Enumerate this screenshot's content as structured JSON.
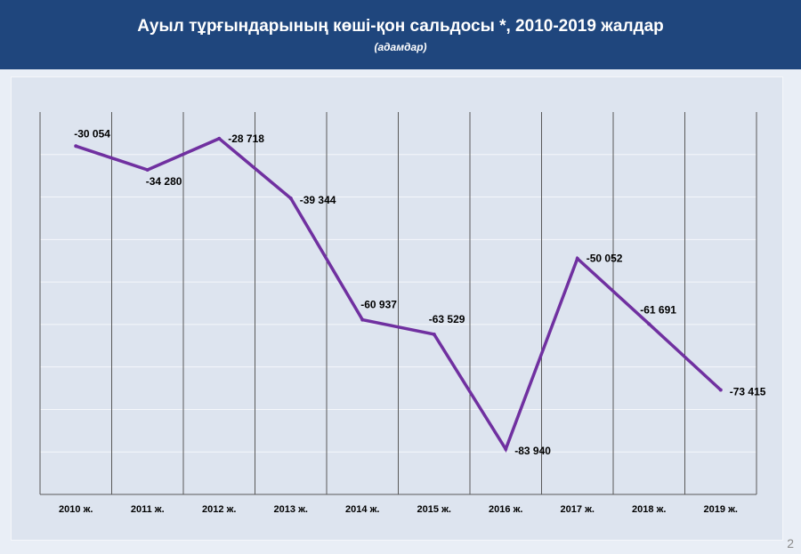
{
  "header": {
    "title": "Ауыл тұрғындарының көші-қон сальдосы *, 2010-2019  жалдар",
    "subtitle": "(адамдар)"
  },
  "page_number": "2",
  "colors": {
    "header_bg": "#1f467d",
    "line": "#7030a0",
    "panel_bg": "#dde4ef"
  },
  "chart_data": {
    "type": "line",
    "title": "Ауыл тұрғындарының көші-қон сальдосы *, 2010-2019  жалдар",
    "subtitle": "(адамдар)",
    "categories": [
      "2010 ж.",
      "2011 ж.",
      "2012 ж.",
      "2013 ж.",
      "2014 ж.",
      "2015 ж.",
      "2016 ж.",
      "2017 ж.",
      "2018 ж.",
      "2019 ж."
    ],
    "values": [
      -30054,
      -34280,
      -28718,
      -39344,
      -60937,
      -63529,
      -83940,
      -50052,
      -61691,
      -73415
    ],
    "data_labels": [
      "-30 054",
      "-34 280",
      "-28 718",
      "-39 344",
      "-60 937",
      "-63 529",
      "-83 940",
      "-50 052",
      "-61 691",
      "-73 415"
    ],
    "ylim": [
      -90000,
      0
    ],
    "grid": true,
    "legend": "none"
  }
}
